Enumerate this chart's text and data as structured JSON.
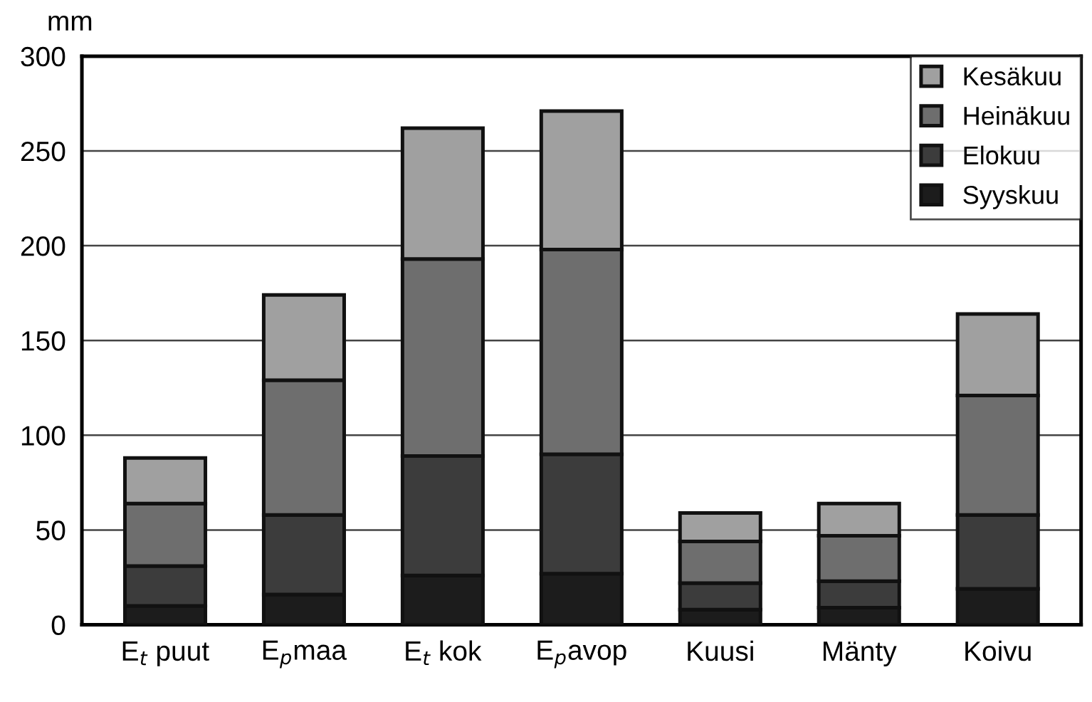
{
  "chart_data": {
    "type": "bar",
    "stacked": true,
    "ylabel": "mm",
    "categories": [
      "E$_{t}$ puut",
      "E$_{p}$maa",
      "E$_{t}$ kok",
      "E$_{p}$avop",
      "Kuusi",
      "Mänty",
      "Koivu"
    ],
    "series": [
      {
        "name": "Syyskuu",
        "color": "#1c1c1c",
        "values": [
          10,
          16,
          26,
          27,
          8,
          9,
          19
        ]
      },
      {
        "name": "Elokuu",
        "color": "#3c3c3c",
        "values": [
          21,
          42,
          63,
          63,
          14,
          14,
          39
        ]
      },
      {
        "name": "Heinäkuu",
        "color": "#6e6e6e",
        "values": [
          33,
          71,
          104,
          108,
          22,
          24,
          63
        ]
      },
      {
        "name": "Kesäkuu",
        "color": "#a0a0a0",
        "values": [
          24,
          45,
          69,
          73,
          15,
          17,
          43
        ]
      }
    ],
    "ylim": [
      0,
      300
    ],
    "yticks": [
      0,
      50,
      100,
      150,
      200,
      250,
      300
    ],
    "grid": "y",
    "legend": "top right"
  }
}
